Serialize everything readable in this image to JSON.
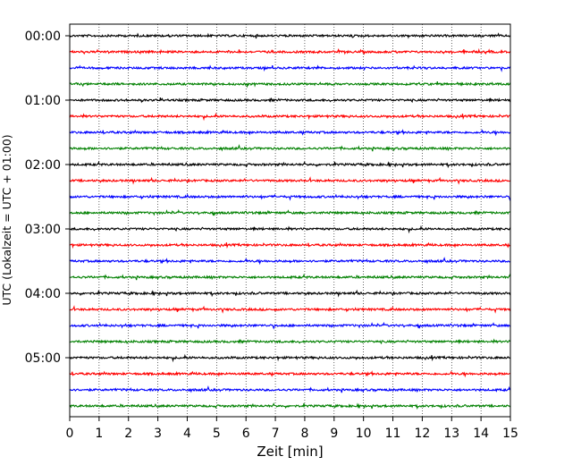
{
  "chart_data": {
    "type": "line",
    "title": "",
    "xlabel": "Zeit  [min]",
    "ylabel": "UTC (Lokalzeit = UTC + 01:00)",
    "xlim": [
      0,
      15
    ],
    "x_ticks": [
      "0",
      "1",
      "2",
      "3",
      "4",
      "5",
      "6",
      "7",
      "8",
      "9",
      "10",
      "11",
      "12",
      "13",
      "14",
      "15"
    ],
    "y_ticks": [
      "00:00",
      "01:00",
      "02:00",
      "03:00",
      "04:00",
      "05:00"
    ],
    "grid": "vertical-dotted",
    "trace_interval_minutes": 15,
    "trace_colors": [
      "#000000",
      "#ff0000",
      "#0000ff",
      "#008000"
    ],
    "traces": [
      {
        "start": "00:00",
        "color": "#000000"
      },
      {
        "start": "00:15",
        "color": "#ff0000"
      },
      {
        "start": "00:30",
        "color": "#0000ff"
      },
      {
        "start": "00:45",
        "color": "#008000"
      },
      {
        "start": "01:00",
        "color": "#000000"
      },
      {
        "start": "01:15",
        "color": "#ff0000"
      },
      {
        "start": "01:30",
        "color": "#0000ff"
      },
      {
        "start": "01:45",
        "color": "#008000"
      },
      {
        "start": "02:00",
        "color": "#000000"
      },
      {
        "start": "02:15",
        "color": "#ff0000"
      },
      {
        "start": "02:30",
        "color": "#0000ff"
      },
      {
        "start": "02:45",
        "color": "#008000"
      },
      {
        "start": "03:00",
        "color": "#000000"
      },
      {
        "start": "03:15",
        "color": "#ff0000"
      },
      {
        "start": "03:30",
        "color": "#0000ff"
      },
      {
        "start": "03:45",
        "color": "#008000"
      },
      {
        "start": "04:00",
        "color": "#000000"
      },
      {
        "start": "04:15",
        "color": "#ff0000"
      },
      {
        "start": "04:30",
        "color": "#0000ff"
      },
      {
        "start": "04:45",
        "color": "#008000"
      },
      {
        "start": "05:00",
        "color": "#000000"
      },
      {
        "start": "05:15",
        "color": "#ff0000"
      },
      {
        "start": "05:30",
        "color": "#0000ff"
      },
      {
        "start": "05:45",
        "color": "#008000"
      }
    ]
  }
}
